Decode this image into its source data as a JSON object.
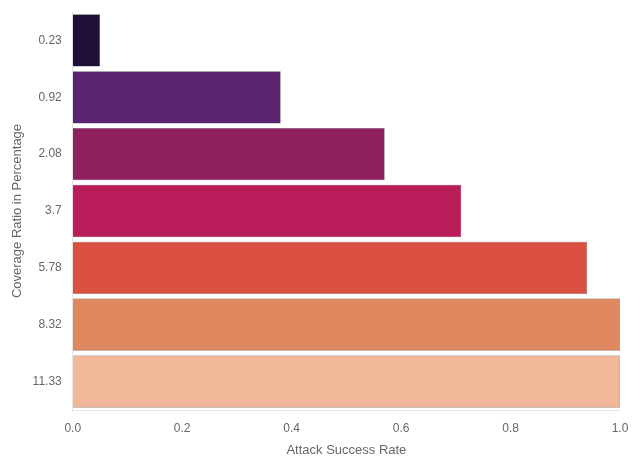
{
  "chart_data": {
    "type": "bar",
    "orientation": "horizontal",
    "categories": [
      "0.23",
      "0.92",
      "2.08",
      "3.7",
      "5.78",
      "8.32",
      "11.33"
    ],
    "values": [
      0.05,
      0.38,
      0.57,
      0.71,
      0.94,
      1.0,
      1.0
    ],
    "colors": [
      "#1e1035",
      "#5a2470",
      "#8e2060",
      "#b81d5a",
      "#d95040",
      "#e08860",
      "#f0b898"
    ],
    "xlabel": "Attack Success Rate",
    "ylabel": "Coverage Ratio in Percentage",
    "xlim": [
      0,
      1.0
    ],
    "xticks": [
      {
        "value": 0,
        "label": "0.0"
      },
      0.2,
      0.4,
      0.6,
      0.8,
      {
        "value": 1,
        "label": "1.0"
      }
    ],
    "grid": false
  }
}
